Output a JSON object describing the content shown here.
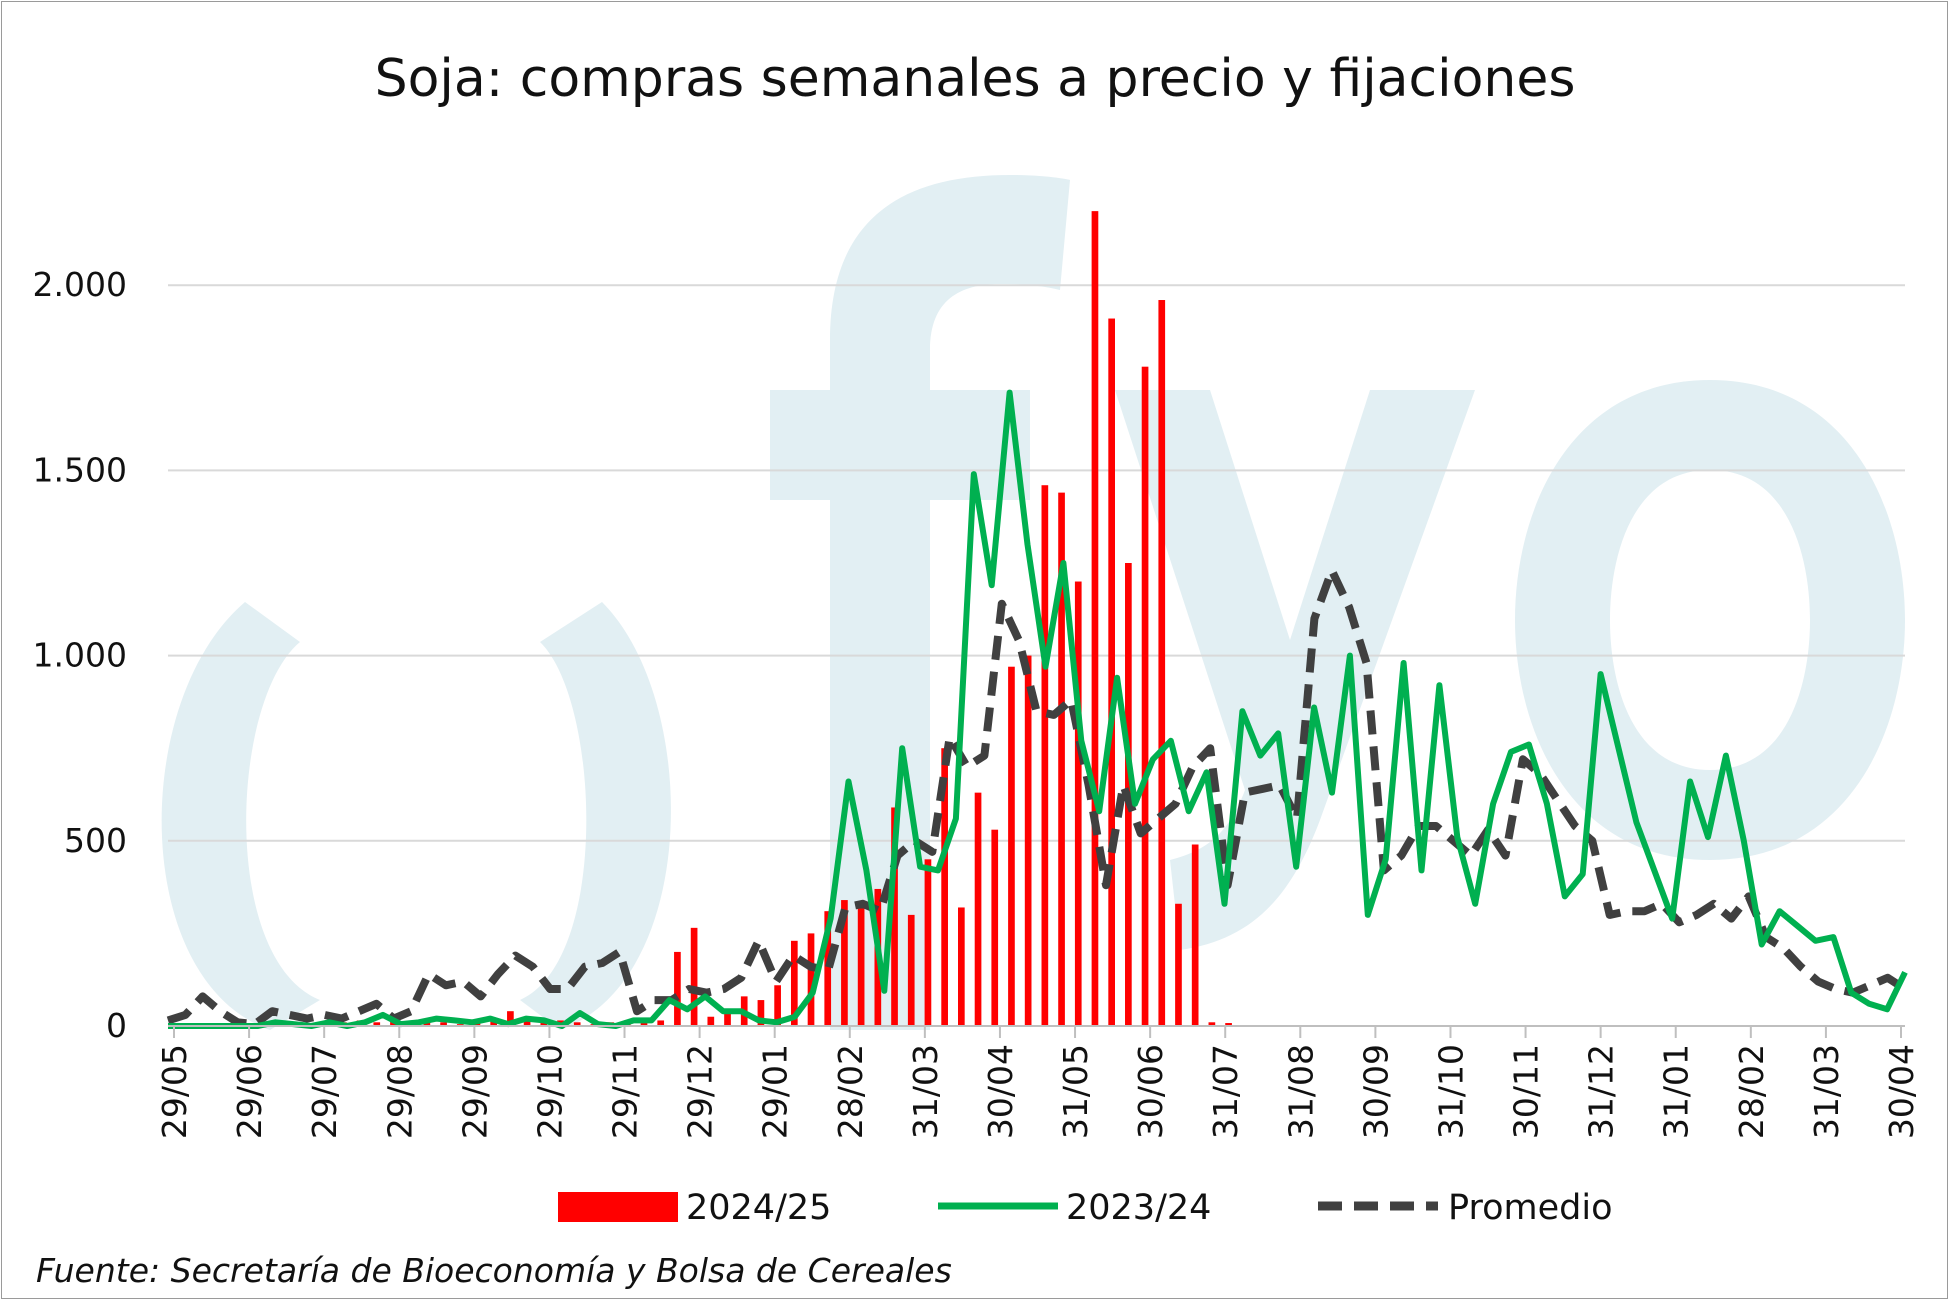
{
  "chart_data": {
    "type": "bar",
    "title": "Soja: compras semanales a precio y fijaciones",
    "xlabel": "",
    "ylabel": "",
    "ylim": [
      0,
      2500
    ],
    "yticks": [
      0,
      500,
      1000,
      1500,
      2000
    ],
    "ytick_labels": [
      "0",
      "500",
      "1.000",
      "1.500",
      "2.000"
    ],
    "x_tick_labels": [
      "29/05",
      "29/06",
      "29/07",
      "29/08",
      "29/09",
      "29/10",
      "29/11",
      "29/12",
      "29/01",
      "28/02",
      "31/03",
      "30/04",
      "31/05",
      "30/06",
      "31/07",
      "31/08",
      "30/09",
      "31/10",
      "30/11",
      "31/12",
      "31/01",
      "28/02",
      "31/03",
      "30/04"
    ],
    "watermark": "fyo",
    "legend_position": "bottom",
    "grid": true,
    "colors": {
      "bar": "#ff0000",
      "green": "#00b050",
      "dashed": "#404040",
      "watermark": "#e2eff3"
    },
    "series": [
      {
        "name": "2024/25",
        "type": "bar",
        "values": [
          0,
          0,
          0,
          0,
          0,
          0,
          0,
          0,
          0,
          5,
          10,
          15,
          10,
          20,
          10,
          15,
          10,
          5,
          15,
          20,
          40,
          20,
          10,
          15,
          10,
          5,
          10,
          15,
          20,
          15,
          200,
          265,
          25,
          40,
          80,
          70,
          110,
          230,
          250,
          310,
          340,
          330,
          370,
          590,
          300,
          450,
          750,
          320,
          630,
          530,
          970,
          1000,
          1460,
          1440,
          1200,
          2200,
          1910,
          1250,
          1780,
          1960,
          330,
          490,
          10,
          8
        ]
      },
      {
        "name": "2023/24",
        "type": "line",
        "values": [
          0,
          0,
          0,
          0,
          0,
          0,
          10,
          5,
          0,
          10,
          0,
          10,
          30,
          5,
          10,
          20,
          15,
          10,
          20,
          5,
          20,
          15,
          0,
          35,
          5,
          0,
          15,
          15,
          70,
          45,
          80,
          40,
          40,
          15,
          10,
          25,
          90,
          290,
          660,
          420,
          95,
          750,
          430,
          420,
          560,
          1490,
          1190,
          1710,
          1300,
          970,
          1250,
          770,
          580,
          940,
          600,
          720,
          770,
          580,
          685,
          330,
          850,
          730,
          790,
          430,
          860,
          630,
          1000,
          300,
          450,
          980,
          420,
          920,
          510,
          330,
          600,
          740,
          760,
          600,
          350,
          410,
          950,
          750,
          550,
          420,
          290,
          660,
          510,
          730,
          500,
          220,
          310,
          270,
          230,
          240,
          90,
          60,
          45,
          145
        ]
      },
      {
        "name": "Promedio",
        "type": "line",
        "values": [
          15,
          30,
          80,
          40,
          10,
          5,
          40,
          30,
          20,
          30,
          20,
          40,
          60,
          20,
          40,
          140,
          110,
          120,
          80,
          140,
          190,
          160,
          100,
          100,
          160,
          170,
          200,
          40,
          70,
          70,
          100,
          90,
          100,
          130,
          230,
          120,
          190,
          160,
          150,
          320,
          330,
          310,
          460,
          500,
          470,
          780,
          700,
          730,
          1140,
          1040,
          850,
          840,
          880,
          650,
          380,
          650,
          520,
          560,
          600,
          700,
          750,
          380,
          630,
          640,
          650,
          560,
          1100,
          1230,
          1130,
          980,
          420,
          460,
          540,
          540,
          500,
          460,
          530,
          460,
          720,
          680,
          610,
          540,
          500,
          300,
          310,
          310,
          330,
          280,
          300,
          330,
          290,
          350,
          240,
          210,
          160,
          120,
          100,
          90,
          110,
          130,
          100
        ]
      }
    ],
    "source": "Fuente: Secretaría de Bioeconomía y Bolsa de Cereales"
  }
}
